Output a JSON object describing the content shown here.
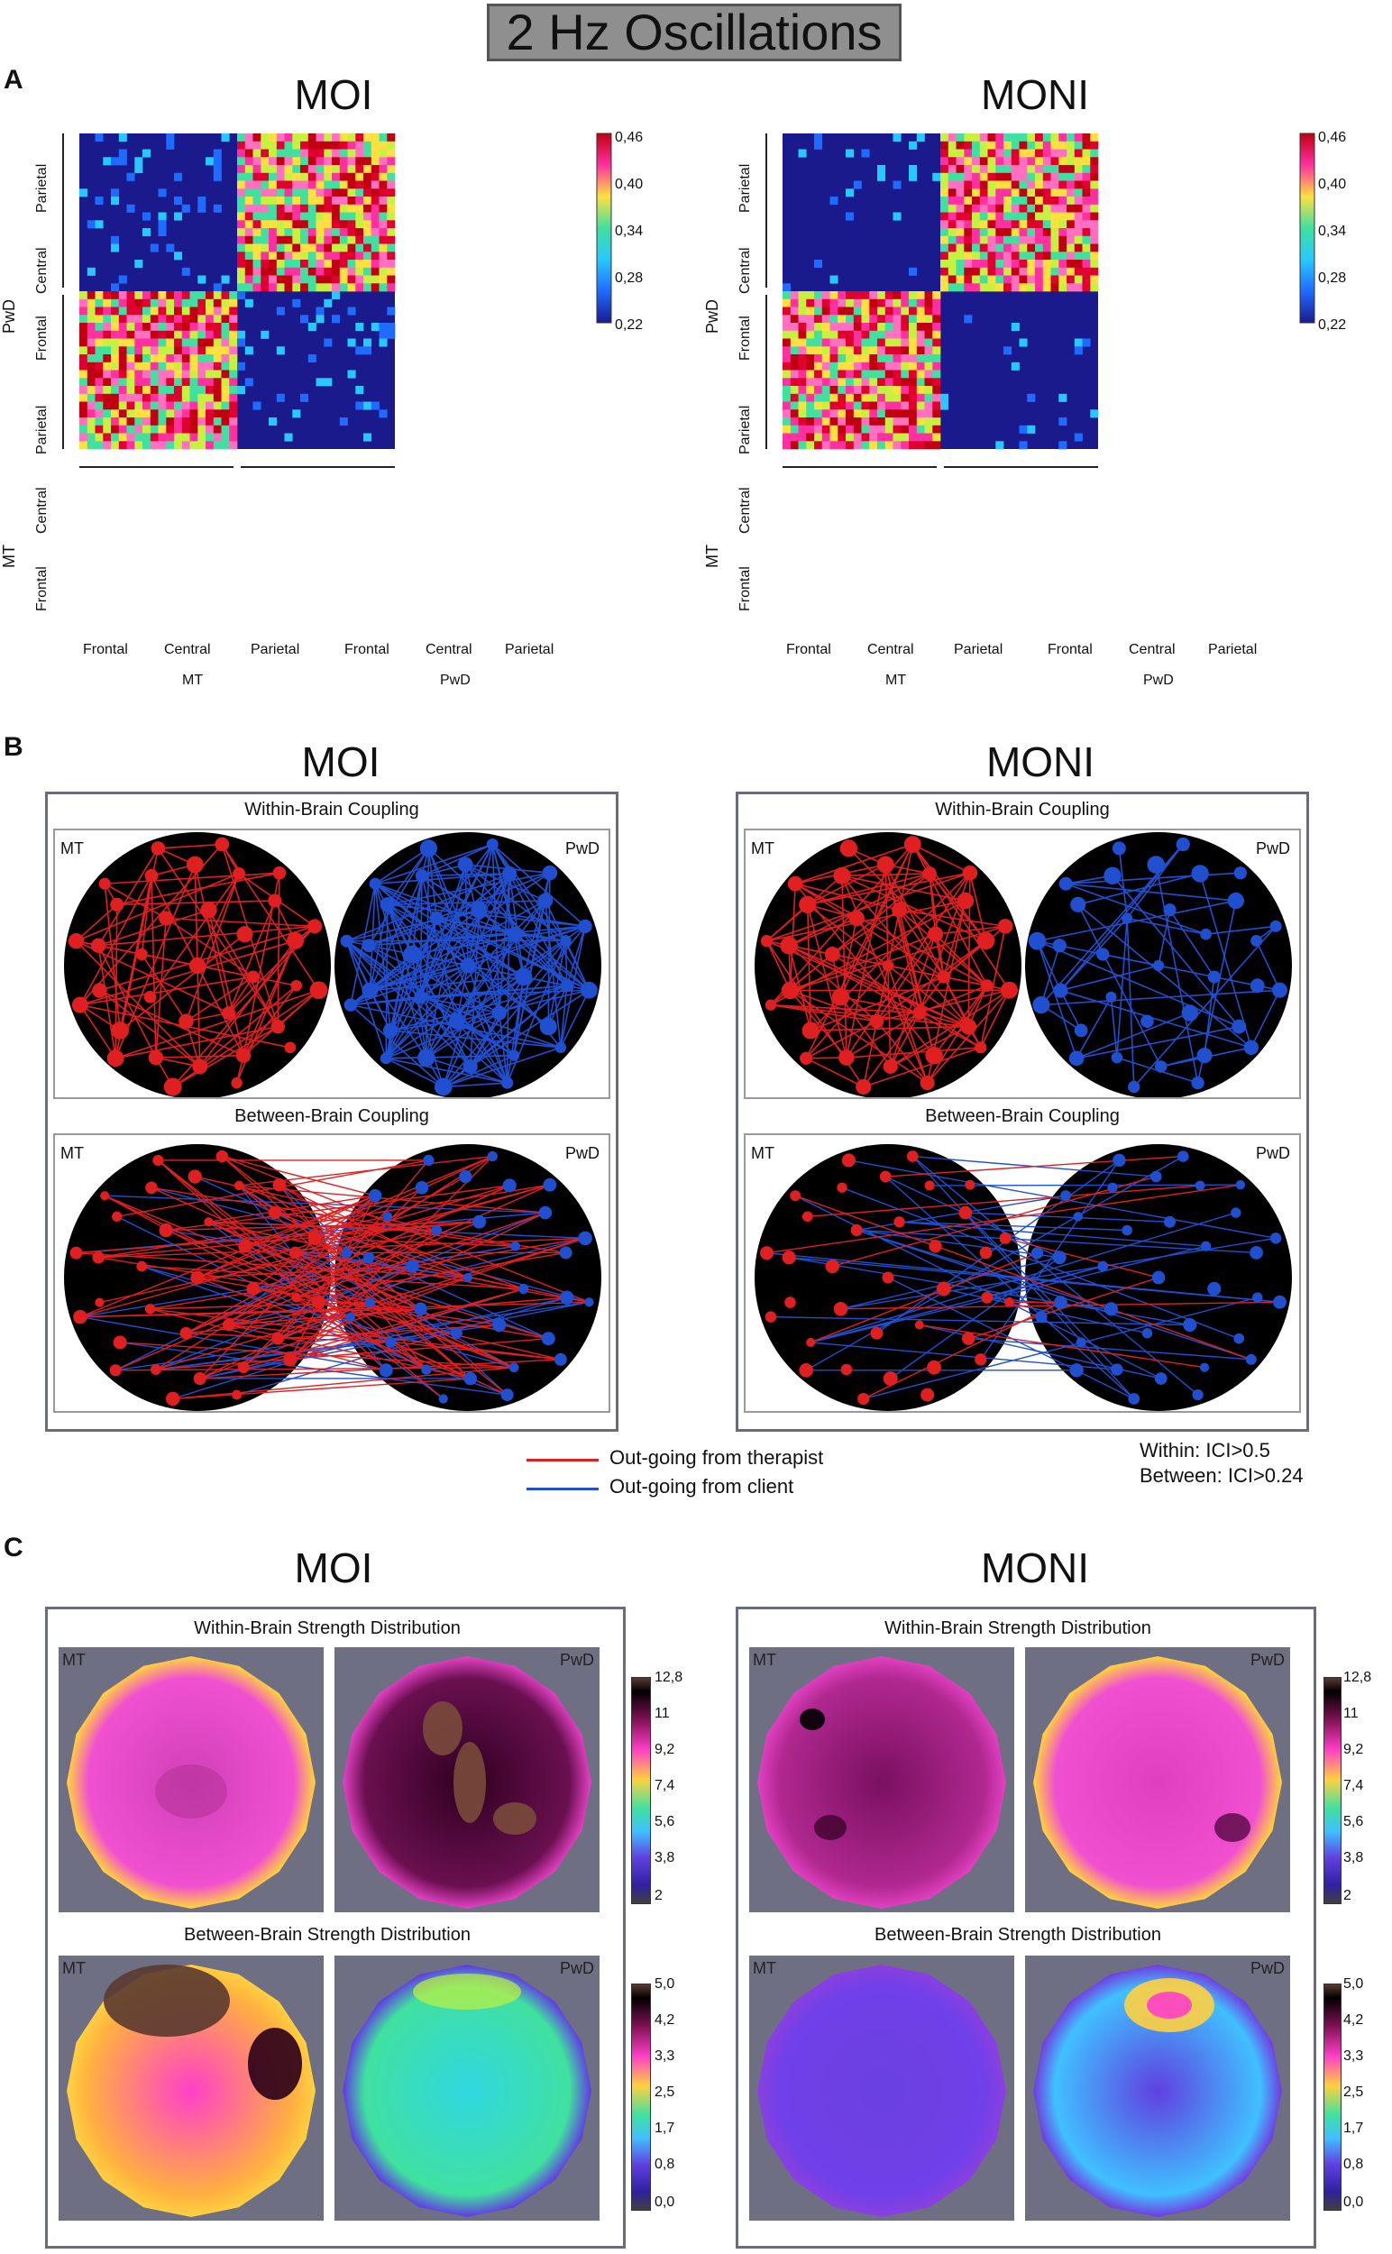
{
  "figure_title": "2 Hz Oscillations",
  "panels": {
    "A": {
      "letter": "A",
      "left": {
        "title": "MOI",
        "y_group_top": "PwD",
        "y_group_bottom": "MT",
        "y_regions_top": [
          "Parietal",
          "Central",
          "Frontal"
        ],
        "y_regions_bottom": [
          "Parietal",
          "Central",
          "Frontal"
        ],
        "x_regions_left": [
          "Frontal",
          "Central",
          "Parietal"
        ],
        "x_regions_right": [
          "Frontal",
          "Central",
          "Parietal"
        ],
        "x_group_left": "MT",
        "x_group_right": "PwD",
        "colorbar_ticks": [
          "0,46",
          "0,40",
          "0,34",
          "0,28",
          "0,22"
        ]
      },
      "right": {
        "title": "MONI",
        "y_group_top": "PwD",
        "y_group_bottom": "MT",
        "y_regions_top": [
          "Parietal",
          "Central",
          "Frontal"
        ],
        "y_regions_bottom": [
          "Parietal",
          "Central",
          "Frontal"
        ],
        "x_regions_left": [
          "Frontal",
          "Central",
          "Parietal"
        ],
        "x_regions_right": [
          "Frontal",
          "Central",
          "Parietal"
        ],
        "x_group_left": "MT",
        "x_group_right": "PwD",
        "colorbar_ticks": [
          "0,46",
          "0,40",
          "0,34",
          "0,28",
          "0,22"
        ]
      }
    },
    "B": {
      "letter": "B",
      "left": {
        "title": "MOI",
        "within_title": "Within-Brain Coupling",
        "between_title": "Between-Brain Coupling",
        "label_mt": "MT",
        "label_pwd": "PwD"
      },
      "right": {
        "title": "MONI",
        "within_title": "Within-Brain Coupling",
        "between_title": "Between-Brain Coupling",
        "label_mt": "MT",
        "label_pwd": "PwD"
      },
      "legend": {
        "therapist": "Out-going from therapist",
        "client": "Out-going from client",
        "therapist_color": "#e02020",
        "client_color": "#2050d0"
      },
      "thresholds": {
        "within": "Within: ICI>0.5",
        "between": "Between: ICI>0.24"
      }
    },
    "C": {
      "letter": "C",
      "left": {
        "title": "MOI",
        "within_title": "Within-Brain Strength Distribution",
        "between_title": "Between-Brain Strength Distribution",
        "label_mt": "MT",
        "label_pwd": "PwD"
      },
      "right": {
        "title": "MONI",
        "within_title": "Within-Brain Strength Distribution",
        "between_title": "Between-Brain Strength Distribution",
        "label_mt": "MT",
        "label_pwd": "PwD"
      },
      "within_colorbar_ticks": [
        "12,8",
        "11",
        "9,2",
        "7,4",
        "5,6",
        "3,8",
        "2"
      ],
      "between_colorbar_ticks": [
        "5,0",
        "4,2",
        "3,3",
        "2,5",
        "1,7",
        "0,8",
        "0,0"
      ]
    }
  },
  "colors": {
    "matrix_background": "#1a1a8c",
    "head_background": "#000000",
    "topo_background": "#6f6f84"
  }
}
